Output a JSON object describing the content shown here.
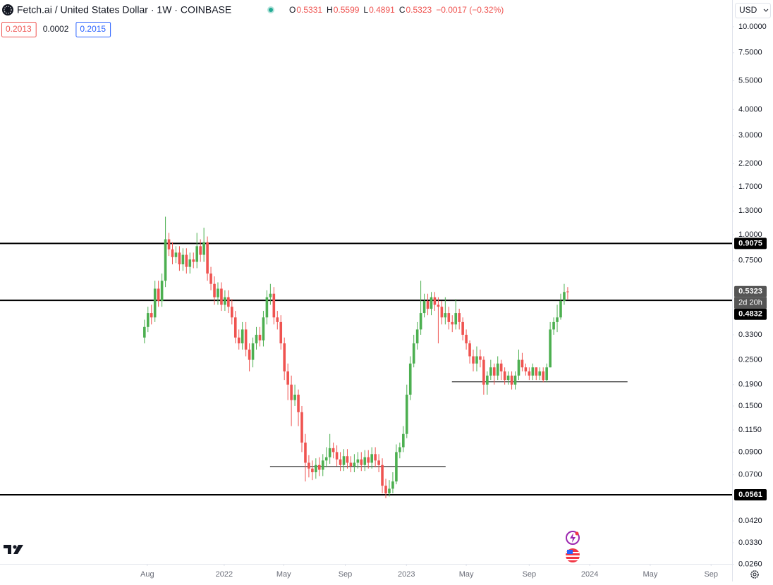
{
  "chart_data": {
    "type": "candlestick",
    "symbol": "Fetch.ai / United States Dollar · 1W · COINBASE",
    "ohlc_header": [
      {
        "key": "O",
        "value": "0.5331"
      },
      {
        "key": "H",
        "value": "0.5599"
      },
      {
        "key": "L",
        "value": "0.4891"
      },
      {
        "key": "C",
        "value": "0.5323"
      }
    ],
    "change": "−0.0017 (−0.32%)",
    "indicator_values": [
      "0.2013",
      "0.0002",
      "0.2015"
    ],
    "currency": "USD",
    "countdown": "2d 20h",
    "last_price": 0.5323,
    "up_color": "#4caf50",
    "down_color": "#ef5350",
    "log_scale": true,
    "xlim": [
      -41.3,
      168
    ],
    "xticks": [
      {
        "value": 0.8,
        "label": "Aug"
      },
      {
        "value": 22.8,
        "label": "2022"
      },
      {
        "value": 39.8,
        "label": "May"
      },
      {
        "value": 57.4,
        "label": "Sep"
      },
      {
        "value": 74.9,
        "label": "2023"
      },
      {
        "value": 92,
        "label": "May"
      },
      {
        "value": 110,
        "label": "Sep"
      },
      {
        "value": 127.3,
        "label": "2024"
      },
      {
        "value": 144.6,
        "label": "May"
      },
      {
        "value": 162,
        "label": "Sep"
      }
    ],
    "ylim": [
      0.0261,
      13.45
    ],
    "yticks": [
      {
        "value": 10,
        "label": "10.0000"
      },
      {
        "value": 7.5,
        "label": "7.5000"
      },
      {
        "value": 5.5,
        "label": "5.5000"
      },
      {
        "value": 4,
        "label": "4.0000"
      },
      {
        "value": 3,
        "label": "3.0000"
      },
      {
        "value": 2.2,
        "label": "2.2000"
      },
      {
        "value": 1.7,
        "label": "1.7000"
      },
      {
        "value": 1.3,
        "label": "1.3000"
      },
      {
        "value": 1,
        "label": "1.0000"
      },
      {
        "value": 0.75,
        "label": "0.7500"
      },
      {
        "value": 0.33,
        "label": "0.3300"
      },
      {
        "value": 0.25,
        "label": "0.2500"
      },
      {
        "value": 0.19,
        "label": "0.1900"
      },
      {
        "value": 0.15,
        "label": "0.1500"
      },
      {
        "value": 0.115,
        "label": "0.1150"
      },
      {
        "value": 0.09,
        "label": "0.0900"
      },
      {
        "value": 0.07,
        "label": "0.0700"
      },
      {
        "value": 0.042,
        "label": "0.0420"
      },
      {
        "value": 0.033,
        "label": "0.0330"
      },
      {
        "value": 0.026,
        "label": "0.0260"
      }
    ],
    "levels": [
      0.9075,
      0.4832,
      0.0561
    ],
    "segments": [
      {
        "value": 0.196,
        "x": [
          87.9,
          138.1
        ]
      },
      {
        "value": 0.0767,
        "x": [
          35.9,
          86.1
        ]
      }
    ],
    "open": [
      0.32,
      0.36,
      0.42,
      0.4,
      0.55,
      0.48,
      0.6,
      0.95,
      0.85,
      0.78,
      0.82,
      0.72,
      0.8,
      0.7,
      0.76,
      0.74,
      0.88,
      0.8,
      0.92,
      0.65,
      0.58,
      0.5,
      0.55,
      0.46,
      0.5,
      0.45,
      0.4,
      0.32,
      0.3,
      0.35,
      0.28,
      0.25,
      0.3,
      0.33,
      0.31,
      0.4,
      0.5,
      0.52,
      0.4,
      0.38,
      0.3,
      0.22,
      0.19,
      0.16,
      0.17,
      0.14,
      0.1,
      0.08,
      0.075,
      0.072,
      0.078,
      0.074,
      0.082,
      0.085,
      0.094,
      0.09,
      0.083,
      0.078,
      0.086,
      0.08,
      0.077,
      0.08,
      0.083,
      0.078,
      0.085,
      0.08,
      0.088,
      0.082,
      0.078,
      0.062,
      0.057,
      0.06,
      0.065,
      0.09,
      0.095,
      0.11,
      0.17,
      0.24,
      0.3,
      0.35,
      0.42,
      0.48,
      0.44,
      0.5,
      0.46,
      0.45,
      0.4,
      0.42,
      0.38,
      0.37,
      0.42,
      0.38,
      0.33,
      0.3,
      0.26,
      0.24,
      0.26,
      0.25,
      0.19,
      0.21,
      0.23,
      0.21,
      0.24,
      0.22,
      0.2,
      0.21,
      0.19,
      0.21,
      0.25,
      0.23,
      0.22,
      0.21,
      0.23,
      0.21,
      0.22,
      0.2,
      0.23,
      0.35,
      0.38,
      0.4,
      0.48,
      0.5331
    ],
    "high": [
      0.39,
      0.45,
      0.46,
      0.6,
      0.6,
      0.65,
      1.22,
      1.02,
      0.92,
      0.88,
      0.88,
      0.86,
      0.86,
      0.82,
      0.82,
      1.02,
      0.95,
      1.08,
      0.98,
      0.7,
      0.63,
      0.59,
      0.59,
      0.54,
      0.54,
      0.49,
      0.43,
      0.35,
      0.38,
      0.38,
      0.3,
      0.32,
      0.36,
      0.36,
      0.43,
      0.54,
      0.58,
      0.56,
      0.43,
      0.41,
      0.32,
      0.24,
      0.21,
      0.19,
      0.18,
      0.15,
      0.11,
      0.087,
      0.082,
      0.084,
      0.085,
      0.088,
      0.095,
      0.11,
      0.1,
      0.097,
      0.09,
      0.093,
      0.093,
      0.086,
      0.088,
      0.09,
      0.09,
      0.092,
      0.092,
      0.095,
      0.095,
      0.088,
      0.084,
      0.067,
      0.066,
      0.072,
      0.098,
      0.1,
      0.12,
      0.19,
      0.26,
      0.33,
      0.38,
      0.6,
      0.52,
      0.52,
      0.53,
      0.53,
      0.5,
      0.48,
      0.5,
      0.45,
      0.41,
      0.49,
      0.44,
      0.4,
      0.35,
      0.31,
      0.28,
      0.29,
      0.28,
      0.26,
      0.22,
      0.25,
      0.24,
      0.26,
      0.25,
      0.23,
      0.22,
      0.22,
      0.22,
      0.28,
      0.27,
      0.24,
      0.23,
      0.24,
      0.23,
      0.23,
      0.23,
      0.24,
      0.38,
      0.4,
      0.46,
      0.52,
      0.58,
      0.5599
    ],
    "low": [
      0.3,
      0.34,
      0.37,
      0.38,
      0.45,
      0.45,
      0.56,
      0.79,
      0.72,
      0.73,
      0.67,
      0.67,
      0.65,
      0.65,
      0.69,
      0.69,
      0.74,
      0.74,
      0.6,
      0.54,
      0.46,
      0.46,
      0.43,
      0.43,
      0.42,
      0.37,
      0.3,
      0.28,
      0.28,
      0.26,
      0.22,
      0.23,
      0.28,
      0.29,
      0.29,
      0.37,
      0.46,
      0.37,
      0.35,
      0.28,
      0.2,
      0.16,
      0.12,
      0.15,
      0.12,
      0.09,
      0.065,
      0.068,
      0.066,
      0.067,
      0.069,
      0.069,
      0.076,
      0.079,
      0.084,
      0.077,
      0.073,
      0.073,
      0.075,
      0.072,
      0.072,
      0.075,
      0.073,
      0.073,
      0.075,
      0.075,
      0.076,
      0.072,
      0.057,
      0.054,
      0.055,
      0.057,
      0.063,
      0.084,
      0.09,
      0.105,
      0.16,
      0.23,
      0.28,
      0.33,
      0.4,
      0.41,
      0.41,
      0.43,
      0.3,
      0.37,
      0.37,
      0.35,
      0.34,
      0.35,
      0.35,
      0.31,
      0.28,
      0.24,
      0.22,
      0.22,
      0.23,
      0.17,
      0.17,
      0.2,
      0.19,
      0.2,
      0.2,
      0.19,
      0.19,
      0.18,
      0.18,
      0.2,
      0.22,
      0.21,
      0.2,
      0.2,
      0.2,
      0.2,
      0.195,
      0.195,
      0.23,
      0.33,
      0.34,
      0.39,
      0.46,
      0.4891
    ],
    "close": [
      0.36,
      0.42,
      0.4,
      0.55,
      0.48,
      0.6,
      0.95,
      0.85,
      0.78,
      0.82,
      0.72,
      0.8,
      0.7,
      0.76,
      0.74,
      0.88,
      0.8,
      0.92,
      0.65,
      0.58,
      0.5,
      0.55,
      0.46,
      0.5,
      0.45,
      0.4,
      0.32,
      0.3,
      0.35,
      0.28,
      0.25,
      0.3,
      0.33,
      0.31,
      0.4,
      0.5,
      0.52,
      0.4,
      0.38,
      0.3,
      0.22,
      0.19,
      0.16,
      0.17,
      0.14,
      0.1,
      0.08,
      0.075,
      0.072,
      0.078,
      0.074,
      0.082,
      0.085,
      0.094,
      0.09,
      0.083,
      0.078,
      0.086,
      0.08,
      0.077,
      0.08,
      0.083,
      0.078,
      0.085,
      0.08,
      0.088,
      0.082,
      0.078,
      0.062,
      0.057,
      0.06,
      0.065,
      0.09,
      0.095,
      0.11,
      0.17,
      0.24,
      0.3,
      0.35,
      0.42,
      0.48,
      0.44,
      0.5,
      0.46,
      0.45,
      0.4,
      0.42,
      0.38,
      0.37,
      0.42,
      0.38,
      0.33,
      0.3,
      0.26,
      0.24,
      0.26,
      0.25,
      0.19,
      0.21,
      0.23,
      0.21,
      0.24,
      0.22,
      0.2,
      0.21,
      0.19,
      0.21,
      0.25,
      0.23,
      0.22,
      0.21,
      0.23,
      0.21,
      0.22,
      0.2,
      0.23,
      0.35,
      0.38,
      0.4,
      0.48,
      0.53,
      0.5323
    ]
  }
}
